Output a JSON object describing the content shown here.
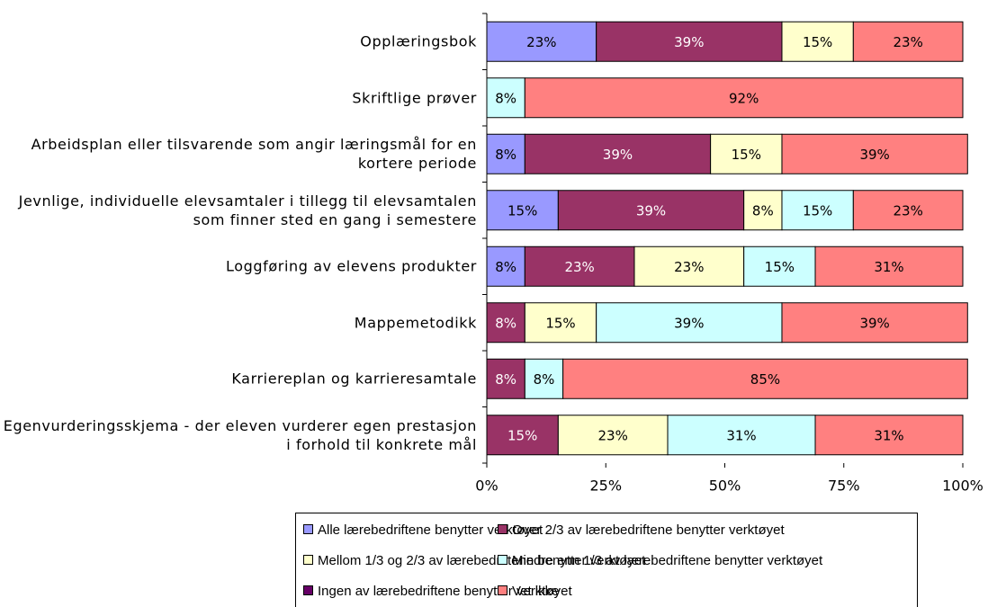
{
  "chart_data": {
    "type": "stacked-barh",
    "categories": [
      "Opplæringsbok",
      "Skriftlige prøver",
      "Arbeidsplan eller tilsvarende som angir læringsmål for en kortere periode",
      "Jevnlige, individuelle elevsamtaler i tillegg til elevsamtalen som finner sted en gang i semestere",
      "Loggføring av elevens produkter",
      "Mappemetodikk",
      "Karriereplan og karrieresamtale",
      "Egenvurderingsskjema - der eleven vurderer egen prestasjon i forhold til konkrete mål"
    ],
    "series": [
      {
        "name": "Alle lærebedriftene benytter verktøyet",
        "color": "#9999ff",
        "label_color": "#000000",
        "values": [
          23,
          null,
          8,
          15,
          8,
          null,
          null,
          null
        ],
        "value_labels": [
          "23%",
          null,
          "8%",
          "15%",
          "8%",
          null,
          null,
          null
        ]
      },
      {
        "name": "Over 2/3 av lærebedriftene benytter verktøyet",
        "color": "#993366",
        "label_color": "#ffffff",
        "values": [
          39,
          null,
          39,
          39,
          23,
          8,
          8,
          15
        ],
        "value_labels": [
          "39%",
          null,
          "39%",
          "39%",
          "23%",
          "8%",
          "8%",
          "15%"
        ]
      },
      {
        "name": "Mellom 1/3 og 2/3 av lærebedriftene benytter verktøyet",
        "color": "#ffffcc",
        "label_color": "#000000",
        "values": [
          15,
          null,
          15,
          8,
          23,
          15,
          null,
          23
        ],
        "value_labels": [
          "15%",
          null,
          "15%",
          "8%",
          "23%",
          "15%",
          null,
          "23%"
        ]
      },
      {
        "name": "Mindre enn 1/3 av lærebedriftene benytter verktøyet",
        "color": "#ccffff",
        "label_color": "#000000",
        "values": [
          null,
          8,
          null,
          15,
          15,
          39,
          8,
          31
        ],
        "value_labels": [
          null,
          "8%",
          null,
          "15%",
          "15%",
          "39%",
          "8%",
          "31%"
        ]
      },
      {
        "name": "Ingen av lærebedriftene benytter verktøyet",
        "color": "#660066",
        "label_color": "#ffffff",
        "values": [
          null,
          null,
          null,
          null,
          null,
          null,
          null,
          null
        ]
      },
      {
        "name": "Vet ikke",
        "color": "#ff8080",
        "label_color": "#000000",
        "values": [
          23,
          92,
          39,
          23,
          31,
          39,
          85,
          31
        ],
        "value_labels": [
          "23%",
          "92%",
          "39%",
          "23%",
          "31%",
          "39%",
          "85%",
          "31%"
        ]
      }
    ],
    "xlim": [
      0,
      100
    ],
    "xticks": [
      {
        "value": 0,
        "label": "0%"
      },
      {
        "value": 25,
        "label": "25%"
      },
      {
        "value": 50,
        "label": "50%"
      },
      {
        "value": 75,
        "label": "75%"
      },
      {
        "value": 100,
        "label": "100%"
      }
    ],
    "legend": "bottom"
  }
}
